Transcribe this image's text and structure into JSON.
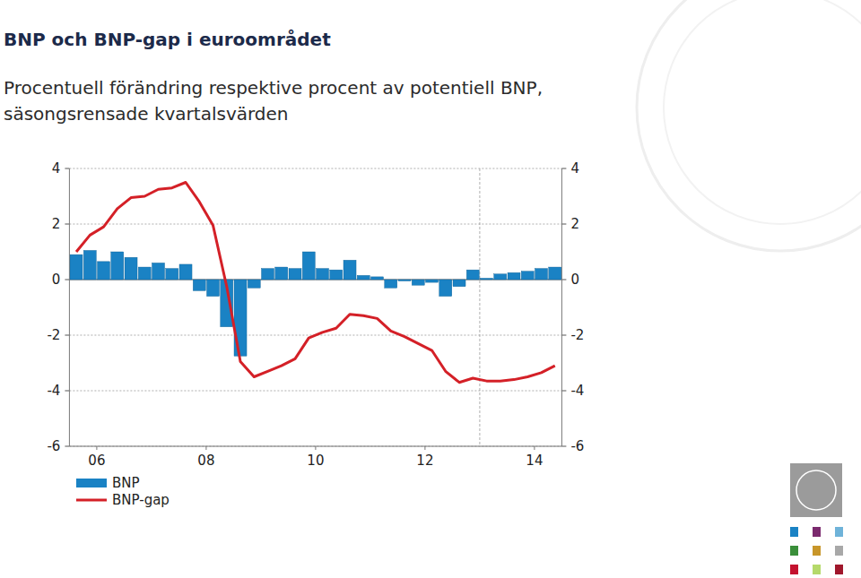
{
  "chart_data": {
    "type": "bar",
    "title": "BNP och BNP-gap i euroområdet",
    "subtitle": "Procentuell förändring respektive procent av potentiell BNP, säsongsrensade kvartalsvärden",
    "x": [
      2006.125,
      2006.375,
      2006.625,
      2006.875,
      2007.125,
      2007.375,
      2007.625,
      2007.875,
      2008.125,
      2008.375,
      2008.625,
      2008.875,
      2009.125,
      2009.375,
      2009.625,
      2009.875,
      2010.125,
      2010.375,
      2010.625,
      2010.875,
      2011.125,
      2011.375,
      2011.625,
      2011.875,
      2012.125,
      2012.375,
      2012.625,
      2012.875,
      2013.125,
      2013.375,
      2013.625,
      2013.875,
      2014.125,
      2014.375,
      2014.625,
      2014.875
    ],
    "series": [
      {
        "name": "BNP",
        "type": "bar",
        "color": "#1a82c4",
        "values": [
          0.9,
          1.05,
          0.65,
          1.0,
          0.8,
          0.45,
          0.6,
          0.4,
          0.55,
          -0.4,
          -0.6,
          -1.7,
          -2.75,
          -0.3,
          0.4,
          0.45,
          0.4,
          1.0,
          0.4,
          0.35,
          0.7,
          0.15,
          0.1,
          -0.3,
          -0.05,
          -0.2,
          -0.1,
          -0.6,
          -0.25,
          0.35,
          0.05,
          0.2,
          0.25,
          0.3,
          0.4,
          0.45
        ]
      },
      {
        "name": "BNP-gap",
        "type": "line",
        "color": "#d42027",
        "values": [
          1.0,
          1.6,
          1.9,
          2.55,
          2.95,
          3.0,
          3.25,
          3.3,
          3.5,
          2.8,
          1.95,
          -0.25,
          -2.95,
          -3.5,
          -3.3,
          -3.1,
          -2.85,
          -2.1,
          -1.9,
          -1.75,
          -1.25,
          -1.3,
          -1.4,
          -1.85,
          -2.05,
          -2.3,
          -2.55,
          -3.3,
          -3.7,
          -3.55,
          -3.65,
          -3.65,
          -3.6,
          -3.5,
          -3.35,
          -3.1
        ]
      }
    ],
    "xlim": [
      2006,
      2015
    ],
    "xticks": [
      {
        "value": 2006.5,
        "label": "06"
      },
      {
        "value": 2008.5,
        "label": "08"
      },
      {
        "value": 2010.5,
        "label": "10"
      },
      {
        "value": 2012.5,
        "label": "12"
      },
      {
        "value": 2014.5,
        "label": "14"
      }
    ],
    "ylim": [
      -6,
      4
    ],
    "yticks": [
      -6,
      -4,
      -2,
      0,
      2,
      4
    ],
    "forecast_start": 2013.5,
    "grid": true,
    "legend": "bottom"
  }
}
